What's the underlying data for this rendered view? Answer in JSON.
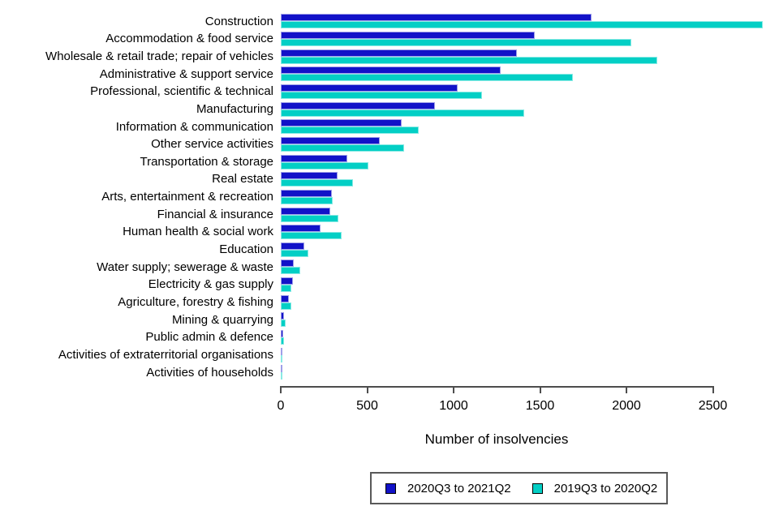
{
  "chart_data": {
    "type": "bar",
    "orientation": "horizontal",
    "title": "",
    "xlabel": "Number of insolvencies",
    "ylabel": "",
    "xlim": [
      0,
      2500
    ],
    "x_ticks": [
      0,
      500,
      1000,
      1500,
      2000,
      2500
    ],
    "grid": false,
    "legend_position": "bottom",
    "categories": [
      "Construction",
      "Accommodation & food service",
      "Wholesale & retail trade; repair of vehicles",
      "Administrative & support service",
      "Professional, scientific & technical",
      "Manufacturing",
      "Information & communication",
      "Other service activities",
      "Transportation & storage",
      "Real estate",
      "Arts, entertainment & recreation",
      "Financial & insurance",
      "Human health & social work",
      "Education",
      "Water supply; sewerage & waste",
      "Electricity & gas supply",
      "Agriculture, forestry & fishing",
      "Mining & quarrying",
      "Public admin & defence",
      "Activities of extraterritorial organisations",
      "Activities of households"
    ],
    "series": [
      {
        "name": "2020Q3 to 2021Q2",
        "color": "#1212c8",
        "border_color": "#9f9fe8",
        "values": [
          1800,
          1470,
          1365,
          1270,
          1025,
          890,
          700,
          575,
          385,
          330,
          295,
          285,
          230,
          135,
          75,
          70,
          45,
          20,
          15,
          8,
          5
        ]
      },
      {
        "name": "2019Q3 to 2020Q2",
        "color": "#03cfc5",
        "border_color": "#8aeae4",
        "values": [
          2790,
          2030,
          2180,
          1690,
          1165,
          1410,
          800,
          715,
          505,
          420,
          300,
          335,
          350,
          160,
          115,
          60,
          60,
          30,
          20,
          5,
          10
        ]
      }
    ],
    "axis_color": "#4d4d4d",
    "legend_border_color": "#595959"
  }
}
